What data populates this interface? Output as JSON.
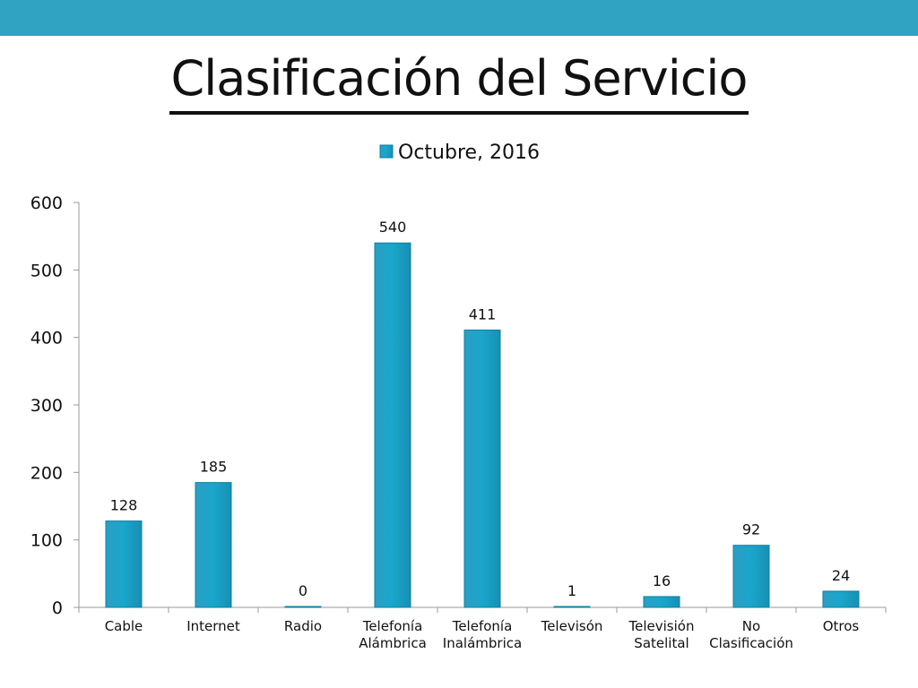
{
  "slide": {
    "title": "Clasificación del Servicio",
    "band_color": "#31a3c2"
  },
  "chart_data": {
    "type": "bar",
    "categories": [
      [
        "Cable"
      ],
      [
        "Internet"
      ],
      [
        "Radio"
      ],
      [
        "Telefonía",
        "Alámbrica"
      ],
      [
        "Telefonía",
        "Inalámbrica"
      ],
      [
        "Televisón"
      ],
      [
        "Televisión",
        "Satelital"
      ],
      [
        "No",
        "Clasificación"
      ],
      [
        "Otros"
      ]
    ],
    "series": [
      {
        "name": "Octubre, 2016",
        "values": [
          128,
          185,
          0,
          540,
          411,
          1,
          16,
          92,
          24
        ],
        "color": "#1aa6cc"
      }
    ],
    "ylim": [
      0,
      600
    ],
    "yticks": [
      0,
      100,
      200,
      300,
      400,
      500,
      600
    ],
    "data_labels": true,
    "grid": false,
    "legend": "top-center"
  }
}
